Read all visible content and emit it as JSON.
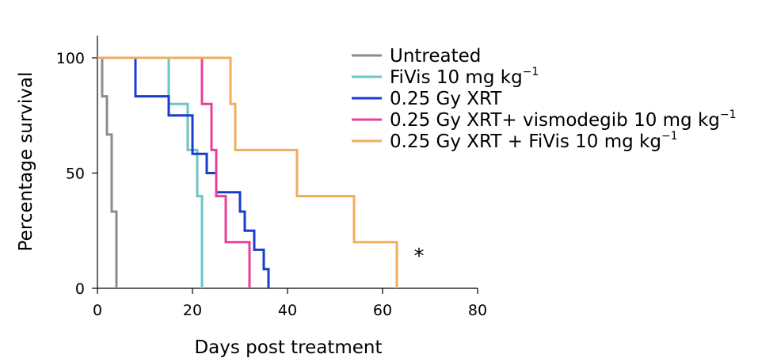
{
  "chart_data": {
    "type": "line",
    "step": true,
    "title": "",
    "xlabel": "Days post treatment",
    "ylabel": "Percentage survival",
    "xlim": [
      0,
      80
    ],
    "ylim": [
      0,
      100
    ],
    "xticks": [
      0,
      20,
      40,
      60,
      80
    ],
    "yticks": [
      0,
      50,
      100
    ],
    "legend_position": "top-right",
    "annotation": "*",
    "series": [
      {
        "name": "Untreated",
        "superscript": "",
        "color": "#8c8c8c",
        "points": [
          [
            0,
            100
          ],
          [
            1,
            100
          ],
          [
            1,
            83.3
          ],
          [
            2,
            83.3
          ],
          [
            2,
            66.7
          ],
          [
            3,
            66.7
          ],
          [
            3,
            33.3
          ],
          [
            4,
            33.3
          ],
          [
            4,
            0
          ]
        ]
      },
      {
        "name": "FiVis 10 mg kg",
        "superscript": "−1",
        "color": "#6cc4c4",
        "points": [
          [
            0,
            100
          ],
          [
            15,
            100
          ],
          [
            15,
            80
          ],
          [
            19,
            80
          ],
          [
            19,
            60
          ],
          [
            21,
            60
          ],
          [
            21,
            40
          ],
          [
            22,
            40
          ],
          [
            22,
            0
          ]
        ]
      },
      {
        "name": "0.25 Gy XRT",
        "superscript": "",
        "color": "#1a3ccc",
        "points": [
          [
            0,
            100
          ],
          [
            8,
            100
          ],
          [
            8,
            83.3
          ],
          [
            15,
            83.3
          ],
          [
            15,
            75
          ],
          [
            20,
            75
          ],
          [
            20,
            58.3
          ],
          [
            23,
            58.3
          ],
          [
            23,
            50
          ],
          [
            25,
            50
          ],
          [
            25,
            41.7
          ],
          [
            30,
            41.7
          ],
          [
            30,
            33.3
          ],
          [
            31,
            33.3
          ],
          [
            31,
            25
          ],
          [
            33,
            25
          ],
          [
            33,
            16.7
          ],
          [
            35,
            16.7
          ],
          [
            35,
            8.3
          ],
          [
            36,
            8.3
          ],
          [
            36,
            0
          ]
        ]
      },
      {
        "name": "0.25 Gy XRT+ vismodegib 10 mg kg",
        "superscript": "−1",
        "color": "#e8409a",
        "points": [
          [
            0,
            100
          ],
          [
            22,
            100
          ],
          [
            22,
            80
          ],
          [
            24,
            80
          ],
          [
            24,
            60
          ],
          [
            25,
            60
          ],
          [
            25,
            40
          ],
          [
            27,
            40
          ],
          [
            27,
            20
          ],
          [
            32,
            20
          ],
          [
            32,
            0
          ]
        ]
      },
      {
        "name": "0.25 Gy XRT + FiVis 10 mg kg",
        "superscript": "−1",
        "color": "#f0ad5e",
        "points": [
          [
            0,
            100
          ],
          [
            28,
            100
          ],
          [
            28,
            80
          ],
          [
            29,
            80
          ],
          [
            29,
            60
          ],
          [
            42,
            60
          ],
          [
            42,
            40
          ],
          [
            54,
            40
          ],
          [
            54,
            20
          ],
          [
            63,
            20
          ],
          [
            63,
            0
          ]
        ]
      }
    ]
  }
}
